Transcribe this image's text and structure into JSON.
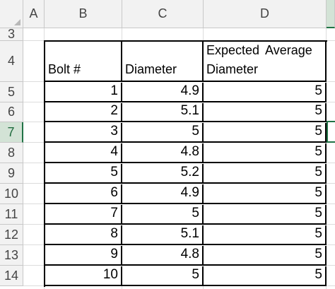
{
  "sheet": {
    "columns": [
      "A",
      "B",
      "C",
      "D"
    ],
    "rows": [
      "3",
      "4",
      "5",
      "6",
      "7",
      "8",
      "9",
      "10",
      "11",
      "12",
      "13",
      "14"
    ],
    "selected_row": "7",
    "header": {
      "b": "Bolt #",
      "c": "Diameter",
      "d_line1": "Expected Average",
      "d_line2": "Diameter"
    },
    "data": [
      {
        "bolt": "1",
        "diameter": "4.9",
        "expected": "5"
      },
      {
        "bolt": "2",
        "diameter": "5.1",
        "expected": "5"
      },
      {
        "bolt": "3",
        "diameter": "5",
        "expected": "5"
      },
      {
        "bolt": "4",
        "diameter": "4.8",
        "expected": "5"
      },
      {
        "bolt": "5",
        "diameter": "5.2",
        "expected": "5"
      },
      {
        "bolt": "6",
        "diameter": "4.9",
        "expected": "5"
      },
      {
        "bolt": "7",
        "diameter": "5",
        "expected": "5"
      },
      {
        "bolt": "8",
        "diameter": "5.1",
        "expected": "5"
      },
      {
        "bolt": "9",
        "diameter": "4.8",
        "expected": "5"
      },
      {
        "bolt": "10",
        "diameter": "5",
        "expected": "5"
      }
    ]
  },
  "colors": {
    "header_bg": "#f2f2f2",
    "selection_green": "#217346",
    "selection_fill": "#d3e3d6"
  }
}
